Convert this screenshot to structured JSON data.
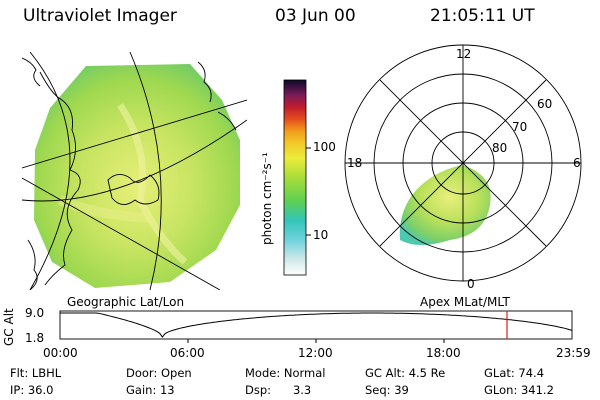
{
  "header": {
    "title": "Ultraviolet Imager",
    "date": "03 Jun 00",
    "time": "21:05:11 UT"
  },
  "geo_panel": {
    "label": "Geographic Lat/Lon"
  },
  "polar_panel": {
    "label": "Apex MLat/MLT",
    "mlt_labels": [
      "12",
      "18",
      "6",
      "0"
    ],
    "lat_labels": [
      "60",
      "70",
      "80"
    ]
  },
  "colorbar": {
    "unit_label": "photon cm⁻²s⁻¹",
    "ticks": [
      "100",
      "10"
    ]
  },
  "altitude_plot": {
    "axis_label": "GC Alt",
    "ymax": "9.0",
    "ymin": "1.8",
    "time_ticks": [
      "00:00",
      "06:00",
      "12:00",
      "18:00",
      "23:59"
    ]
  },
  "info": {
    "col1": [
      "Flt: LBHL",
      "IP: 36.0"
    ],
    "col2": [
      "Door: Open",
      "Gain: 13"
    ],
    "col3": [
      "Mode: Normal",
      "Dsp:      3.3"
    ],
    "col4": [
      "GC Alt: 4.5 Re",
      "Seq: 39"
    ],
    "col5": [
      "GLat: 74.4",
      "GLon: 341.2"
    ]
  },
  "colors": {
    "marker": "#d42020",
    "image_green": "#8fd24a",
    "image_yellow": "#e9f07a"
  }
}
